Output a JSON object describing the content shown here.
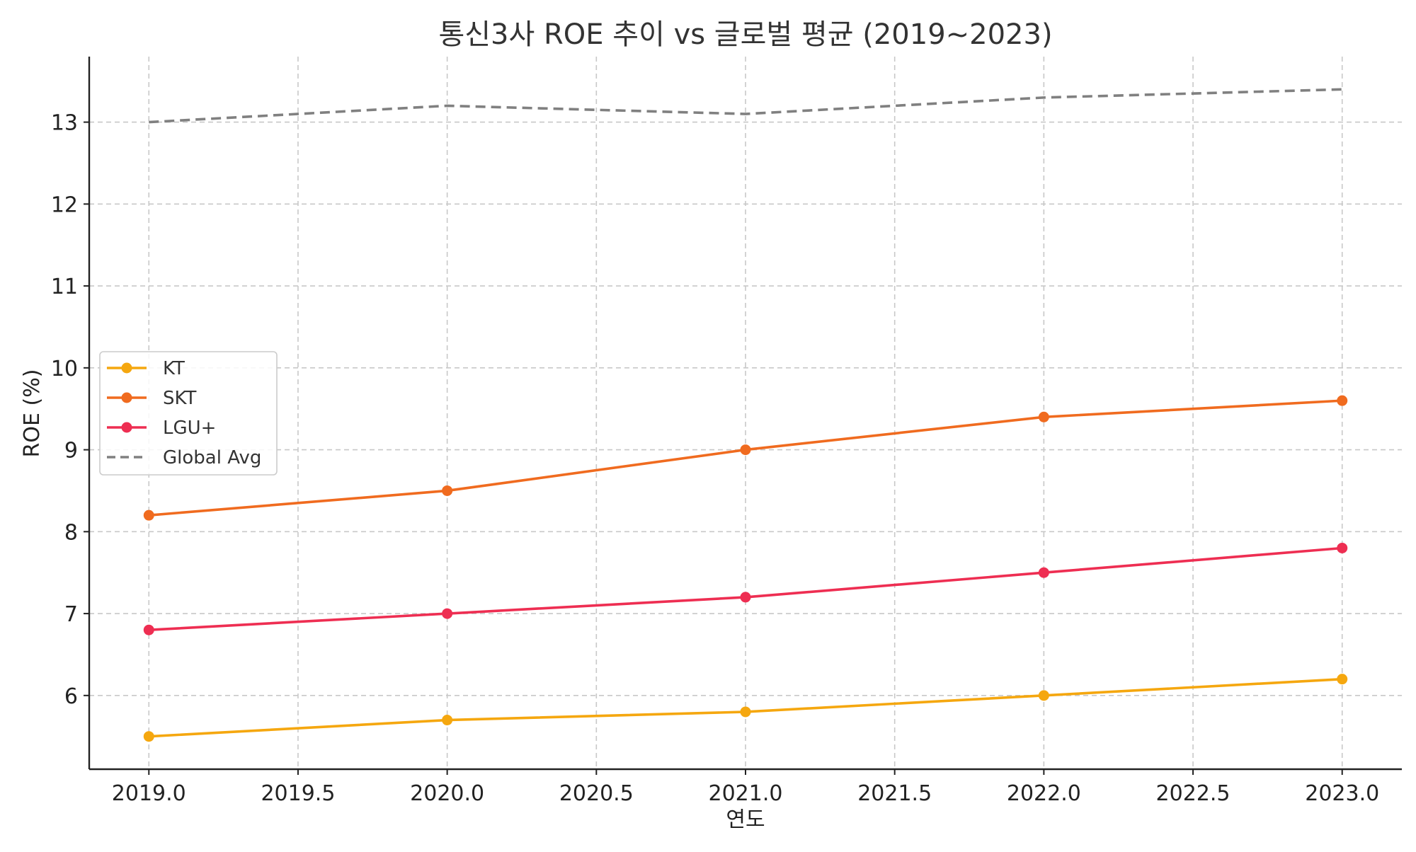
{
  "chart_data": {
    "type": "line",
    "title": "통신3사 ROE 추이 vs 글로벌 평균 (2019~2023)",
    "xlabel": "연도",
    "ylabel": "ROE (%)",
    "x": [
      2019,
      2020,
      2021,
      2022,
      2023
    ],
    "xlim": [
      2018.8,
      2023.2
    ],
    "ylim": [
      5.1,
      13.8
    ],
    "xticks": [
      2019.0,
      2019.5,
      2020.0,
      2020.5,
      2021.0,
      2021.5,
      2022.0,
      2022.5,
      2023.0
    ],
    "xtick_labels": [
      "2019.0",
      "2019.5",
      "2020.0",
      "2020.5",
      "2021.0",
      "2021.5",
      "2022.0",
      "2022.5",
      "2023.0"
    ],
    "yticks": [
      6,
      7,
      8,
      9,
      10,
      11,
      12,
      13
    ],
    "ytick_labels": [
      "6",
      "7",
      "8",
      "9",
      "10",
      "11",
      "12",
      "13"
    ],
    "grid": true,
    "legend_position": "center-left",
    "series": [
      {
        "name": "KT",
        "values": [
          5.5,
          5.7,
          5.8,
          6.0,
          6.2
        ],
        "color": "#f5a70f",
        "style": "solid",
        "markers": true
      },
      {
        "name": "SKT",
        "values": [
          8.2,
          8.5,
          9.0,
          9.4,
          9.6
        ],
        "color": "#f06b1f",
        "style": "solid",
        "markers": true
      },
      {
        "name": "LGU+",
        "values": [
          6.8,
          7.0,
          7.2,
          7.5,
          7.8
        ],
        "color": "#ee2e52",
        "style": "solid",
        "markers": true
      },
      {
        "name": "Global Avg",
        "values": [
          13.0,
          13.2,
          13.1,
          13.3,
          13.4
        ],
        "color": "#808080",
        "style": "dashed",
        "markers": false
      }
    ]
  }
}
